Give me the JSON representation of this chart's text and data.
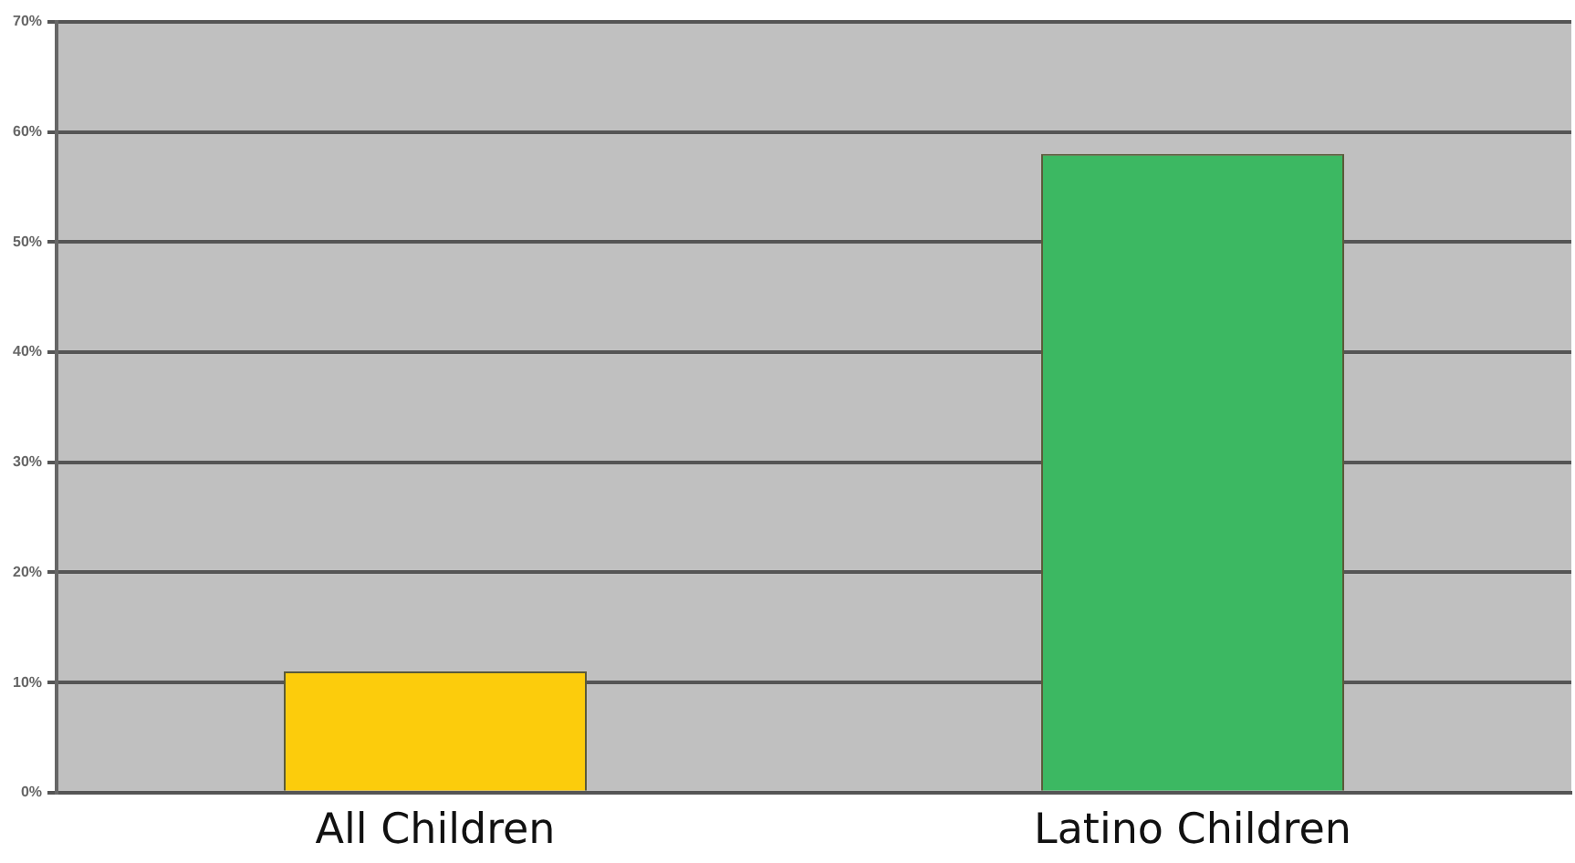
{
  "chart_data": {
    "type": "bar",
    "categories": [
      "All Children",
      "Latino Children"
    ],
    "values": [
      11,
      58
    ],
    "colors": [
      "#fccc0c",
      "#3cb862"
    ],
    "ylim": [
      0,
      70
    ],
    "yticks": [
      {
        "value": 0,
        "label": "0%"
      },
      {
        "value": 10,
        "label": "10%"
      },
      {
        "value": 20,
        "label": "20%"
      },
      {
        "value": 30,
        "label": "30%"
      },
      {
        "value": 40,
        "label": "40%"
      },
      {
        "value": 50,
        "label": "50%"
      },
      {
        "value": 60,
        "label": "60%"
      },
      {
        "value": 70,
        "label": "70%"
      }
    ],
    "grid": "y",
    "legend": false
  }
}
